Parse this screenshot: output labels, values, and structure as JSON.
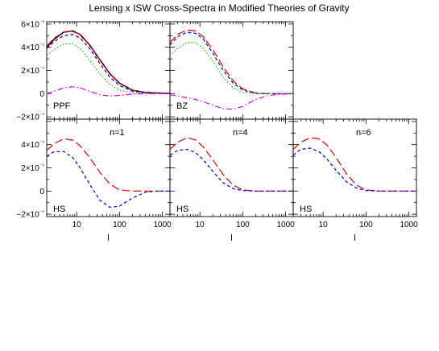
{
  "title": "Lensing x ISW Cross-Spectra in Modified Theories of Gravity",
  "chart_data": {
    "type": "line",
    "xlabel": "l",
    "x_scale": "log",
    "xlim": [
      2,
      1500
    ],
    "x_ticks": [
      "10",
      "100",
      "1000"
    ],
    "ylim": [
      -2.2e-09,
      6.2e-09
    ],
    "y_ticks": [
      "6×10⁻⁹",
      "4×10⁻⁹",
      "2×10⁻⁹",
      "0",
      "−2×10⁻⁹"
    ],
    "x": [
      2,
      3,
      5,
      8,
      12,
      20,
      35,
      60,
      100,
      200,
      400,
      800,
      1500
    ],
    "colors": {
      "black": "#000000",
      "red": "#e00000",
      "blue": "#0000e0",
      "green": "#00c000",
      "magenta": "#e000e0"
    },
    "panels": [
      {
        "label": "PPF",
        "series": [
          {
            "color": "black",
            "dash": "solid",
            "values": [
              4e-09,
              4.7e-09,
              5.3e-09,
              5.4e-09,
              5.1e-09,
              4.2e-09,
              2.9e-09,
              1.7e-09,
              9e-10,
              3e-10,
              1e-10,
              5e-11,
              2e-11
            ]
          },
          {
            "color": "red",
            "dash": "long",
            "values": [
              4.1e-09,
              4.8e-09,
              5.3e-09,
              5.4e-09,
              5.1e-09,
              4.2e-09,
              2.9e-09,
              1.7e-09,
              9e-10,
              3e-10,
              1e-10,
              5e-11,
              2e-11
            ]
          },
          {
            "color": "blue",
            "dash": "short",
            "values": [
              3.9e-09,
              4.5e-09,
              5e-09,
              5.1e-09,
              4.8e-09,
              3.9e-09,
              2.6e-09,
              1.4e-09,
              7e-10,
              2e-10,
              7e-11,
              3e-11,
              1e-11
            ]
          },
          {
            "color": "green",
            "dash": "dotted",
            "values": [
              3.3e-09,
              3.8e-09,
              4.3e-09,
              4.3e-09,
              3.9e-09,
              2.9e-09,
              1.7e-09,
              8e-10,
              3e-10,
              5e-11,
              0.0,
              0.0,
              0.0
            ]
          },
          {
            "color": "magenta",
            "dash": "dashdot",
            "values": [
              0.0,
              2e-10,
              5e-10,
              6e-10,
              5e-10,
              2e-10,
              -1e-10,
              -2e-10,
              -1.5e-10,
              -5e-11,
              0.0,
              0.0,
              0.0
            ]
          }
        ]
      },
      {
        "label": "BZ",
        "series": [
          {
            "color": "red",
            "dash": "long",
            "values": [
              4.4e-09,
              5.1e-09,
              5.5e-09,
              5.4e-09,
              4.9e-09,
              3.8e-09,
              2.3e-09,
              1.1e-09,
              4e-10,
              5e-11,
              0.0,
              0.0,
              0.0
            ]
          },
          {
            "color": "blue",
            "dash": "short",
            "values": [
              4.2e-09,
              4.9e-09,
              5.3e-09,
              5.2e-09,
              4.7e-09,
              3.5e-09,
              2e-09,
              9e-10,
              3e-10,
              3e-11,
              0.0,
              0.0,
              0.0
            ]
          },
          {
            "color": "green",
            "dash": "dotted",
            "values": [
              3.3e-09,
              3.9e-09,
              4.4e-09,
              4.4e-09,
              3.9e-09,
              2.8e-09,
              1.4e-09,
              5e-10,
              1e-10,
              0.0,
              0.0,
              0.0,
              0.0
            ]
          },
          {
            "color": "magenta",
            "dash": "dashdot",
            "values": [
              -1e-10,
              -2e-10,
              -3.5e-10,
              -5e-10,
              -7e-10,
              -1e-09,
              -1.3e-09,
              -1.35e-09,
              -1.1e-09,
              -5e-10,
              -1.5e-10,
              -5e-11,
              0.0
            ]
          }
        ]
      },
      {
        "label": "HS",
        "n_label": "n=1",
        "series": [
          {
            "color": "red",
            "dash": "long",
            "values": [
              3.5e-09,
              4.1e-09,
              4.5e-09,
              4.4e-09,
              3.9e-09,
              2.9e-09,
              1.6e-09,
              6e-10,
              1e-10,
              0.0,
              0.0,
              0.0,
              0.0
            ]
          },
          {
            "color": "blue",
            "dash": "short",
            "values": [
              3e-09,
              3.4e-09,
              3.4e-09,
              2.9e-09,
              2e-09,
              6e-10,
              -8e-10,
              -1.4e-09,
              -1.3e-09,
              -6e-10,
              -1e-10,
              0.0,
              0.0
            ]
          }
        ]
      },
      {
        "label": "HS",
        "n_label": "n=4",
        "series": [
          {
            "color": "red",
            "dash": "long",
            "values": [
              3.6e-09,
              4.2e-09,
              4.6e-09,
              4.4e-09,
              3.8e-09,
              2.7e-09,
              1.4e-09,
              5e-10,
              1e-10,
              0.0,
              0.0,
              0.0,
              0.0
            ]
          },
          {
            "color": "blue",
            "dash": "short",
            "values": [
              3.1e-09,
              3.5e-09,
              3.6e-09,
              3.3e-09,
              2.7e-09,
              1.7e-09,
              7e-10,
              2e-10,
              5e-11,
              0.0,
              0.0,
              0.0,
              0.0
            ]
          }
        ]
      },
      {
        "label": "HS",
        "n_label": "n=6",
        "series": [
          {
            "color": "red",
            "dash": "long",
            "values": [
              3.6e-09,
              4.2e-09,
              4.6e-09,
              4.5e-09,
              4e-09,
              2.9e-09,
              1.5e-09,
              5e-10,
              1e-10,
              0.0,
              0.0,
              0.0,
              0.0
            ]
          },
          {
            "color": "blue",
            "dash": "short",
            "values": [
              3.1e-09,
              3.6e-09,
              3.7e-09,
              3.4e-09,
              2.8e-09,
              1.8e-09,
              8e-10,
              2.5e-10,
              5e-11,
              0.0,
              0.0,
              0.0,
              0.0
            ]
          }
        ]
      }
    ]
  }
}
